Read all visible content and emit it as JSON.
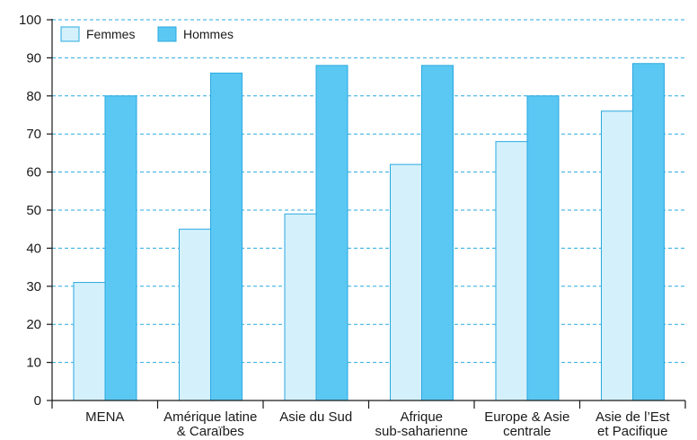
{
  "chart_data": {
    "type": "bar",
    "title": "",
    "xlabel": "",
    "ylabel": "",
    "ylim": [
      0,
      100
    ],
    "yticks": [
      0,
      10,
      20,
      30,
      40,
      50,
      60,
      70,
      80,
      90,
      100
    ],
    "grid": true,
    "legend_position": "top-left",
    "categories": [
      [
        "MENA"
      ],
      [
        "Amérique latine",
        "& Caraïbes"
      ],
      [
        "Asie du Sud"
      ],
      [
        "Afrique",
        "sub-saharienne"
      ],
      [
        "Europe & Asie",
        "centrale"
      ],
      [
        "Asie de l’Est",
        "et Pacifique"
      ]
    ],
    "series": [
      {
        "name": "Femmes",
        "color": "#d4f1fb",
        "values": [
          31,
          45,
          49,
          62,
          68,
          76
        ]
      },
      {
        "name": "Hommes",
        "color": "#5bc8f3",
        "values": [
          80,
          86,
          88,
          88,
          80,
          88.5
        ]
      }
    ],
    "colors": {
      "outline": "#29a9e0",
      "grid": "#29a9e0",
      "axis": "#1a1a1a"
    }
  }
}
